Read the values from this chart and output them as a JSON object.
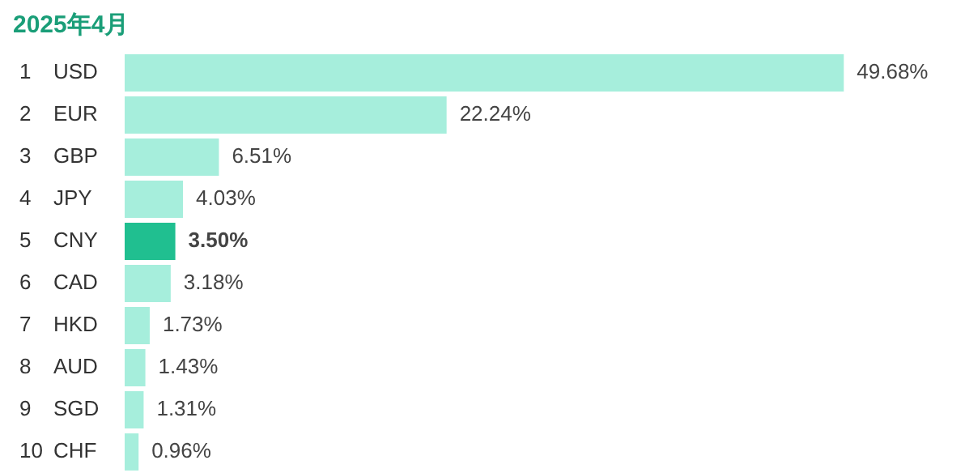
{
  "chart_data": {
    "type": "bar",
    "orientation": "horizontal",
    "title": "2025年4月",
    "categories": [
      "1 USD",
      "2 EUR",
      "3 GBP",
      "4 JPY",
      "5 CNY",
      "6 CAD",
      "7 HKD",
      "8 AUD",
      "9 SGD",
      "10 CHF"
    ],
    "values": [
      49.68,
      22.24,
      6.51,
      4.03,
      3.5,
      3.18,
      1.73,
      1.43,
      1.31,
      0.96
    ],
    "value_labels": [
      "49.68%",
      "22.24%",
      "6.51%",
      "4.03%",
      "3.50%",
      "3.18%",
      "1.73%",
      "1.43%",
      "1.31%",
      "0.96%"
    ],
    "colors": [
      "#a6eedc",
      "#a6eedc",
      "#a6eedc",
      "#a6eedc",
      "#20bf90",
      "#a6eedc",
      "#a6eedc",
      "#a6eedc",
      "#a6eedc",
      "#a6eedc"
    ],
    "tick_labels": "y",
    "grid": false,
    "legend": false
  }
}
